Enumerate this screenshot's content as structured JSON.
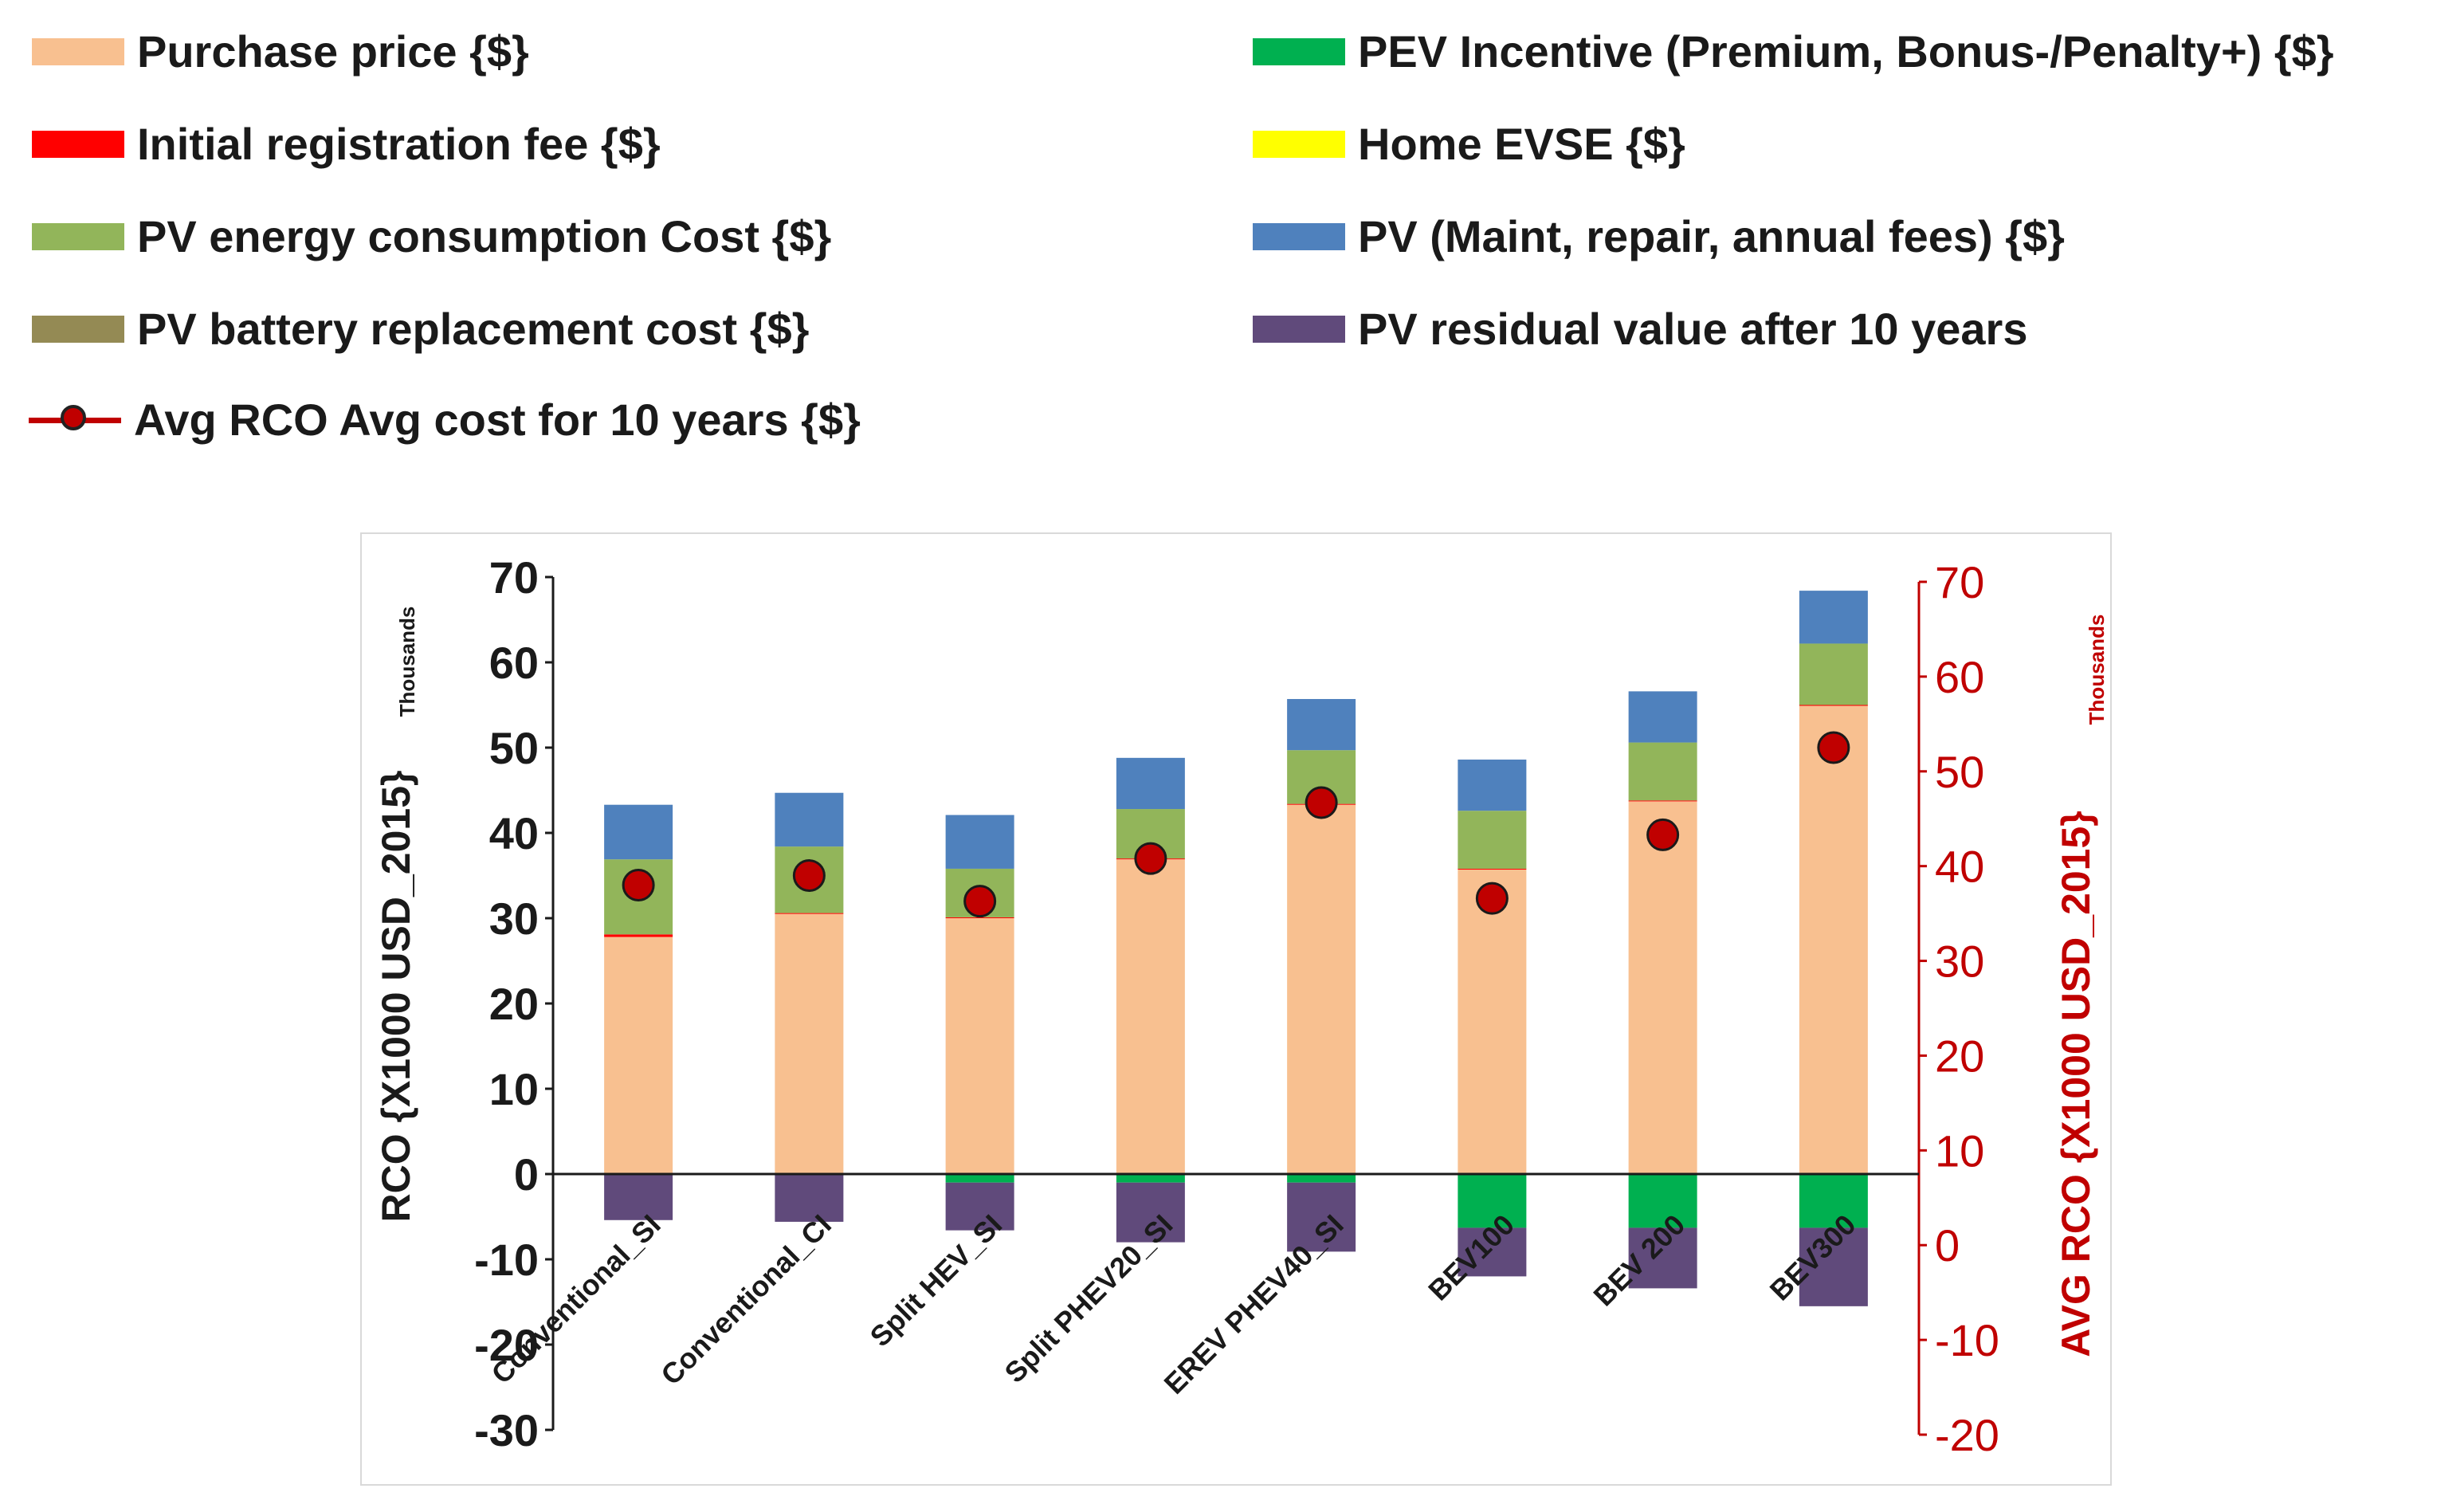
{
  "chart_data": {
    "type": "bar",
    "subtype": "stacked-bar-with-marker-overlay",
    "categories": [
      "Conventional_SI",
      "Conventional_CI",
      "Split HEV_SI",
      "Split PHEV20_SI",
      "EREV PHEV40_SI",
      "BEV100",
      "BEV 200",
      "BEV300"
    ],
    "series": [
      {
        "name": "Purchase price {$}",
        "color": "#f8c090",
        "axis": "left",
        "values": [
          27.8,
          30.5,
          30.0,
          36.9,
          43.3,
          35.7,
          43.7,
          54.9
        ]
      },
      {
        "name": "Initial registration fee {$}",
        "color": "#ff0000",
        "axis": "left",
        "values": [
          0.3,
          0.1,
          0.1,
          0.1,
          0.1,
          0.1,
          0.1,
          0.1
        ]
      },
      {
        "name": "PV energy consumption Cost {$}",
        "color": "#92b55a",
        "axis": "left",
        "values": [
          8.8,
          7.8,
          5.7,
          5.8,
          6.3,
          6.8,
          6.8,
          7.2
        ]
      },
      {
        "name": "PV battery replacement cost {$}",
        "color": "#948a54",
        "axis": "left",
        "values": [
          0,
          0,
          0,
          0,
          0,
          0,
          0,
          0
        ]
      },
      {
        "name": "PEV Incentive (Premium, Bonus-/Penalty+) {$}",
        "color": "#00b050",
        "axis": "left",
        "values": [
          0,
          0,
          -1.0,
          -1.0,
          -1.0,
          -6.3,
          -6.3,
          -6.3
        ]
      },
      {
        "name": "Home EVSE {$}",
        "color": "#ffff00",
        "axis": "left",
        "values": [
          0,
          0,
          0,
          0,
          0,
          0,
          0,
          0
        ]
      },
      {
        "name": "PV (Maint, repair, annual fees) {$}",
        "color": "#4f81bd",
        "axis": "left",
        "values": [
          6.4,
          6.3,
          6.3,
          6.0,
          6.0,
          6.0,
          6.0,
          6.2
        ]
      },
      {
        "name": "PV residual value after 10 years",
        "color": "#604a7b",
        "axis": "left",
        "values": [
          -5.4,
          -5.6,
          -5.6,
          -7.0,
          -8.1,
          -5.7,
          -7.1,
          -9.2
        ]
      }
    ],
    "line_series": {
      "name": "Avg RCO Avg cost for 10 years {$}",
      "color": "#c00000",
      "axis": "right",
      "show_line": false,
      "values": [
        38.0,
        39.0,
        36.3,
        40.8,
        46.7,
        36.6,
        43.3,
        52.5
      ]
    },
    "ylabel": "RCO {X1000 USD_2015}",
    "ylabel_units": "Thousands",
    "ylim": [
      -30,
      70
    ],
    "yticks": [
      "70",
      "60",
      "50",
      "40",
      "30",
      "20",
      "10",
      "0",
      "-10",
      "-20",
      "-30"
    ],
    "ylabel_right": "AVG RCO {X1000 USD_2015}",
    "ylabel_right_units": "Thousands",
    "ylim_right": [
      -20,
      70
    ],
    "yticks_right": [
      "70",
      "60",
      "50",
      "40",
      "30",
      "20",
      "10",
      "0",
      "-10",
      "-20"
    ],
    "legend_position": "top",
    "grid": false
  },
  "legend_items": [
    {
      "label": "Purchase price {$}",
      "color": "#f8c090"
    },
    {
      "label": "PEV Incentive (Premium, Bonus-/Penalty+) {$}",
      "color": "#00b050"
    },
    {
      "label": "Initial registration fee {$}",
      "color": "#ff0000"
    },
    {
      "label": "Home EVSE {$}",
      "color": "#ffff00"
    },
    {
      "label": "PV energy consumption Cost {$}",
      "color": "#92b55a"
    },
    {
      "label": "PV (Maint, repair, annual fees) {$}",
      "color": "#4f81bd"
    },
    {
      "label": "PV battery replacement cost {$}",
      "color": "#948a54"
    },
    {
      "label": "PV residual value after 10 years",
      "color": "#604a7b"
    },
    {
      "label": "Avg RCO Avg cost for 10 years {$}",
      "color": "#c00000"
    }
  ]
}
